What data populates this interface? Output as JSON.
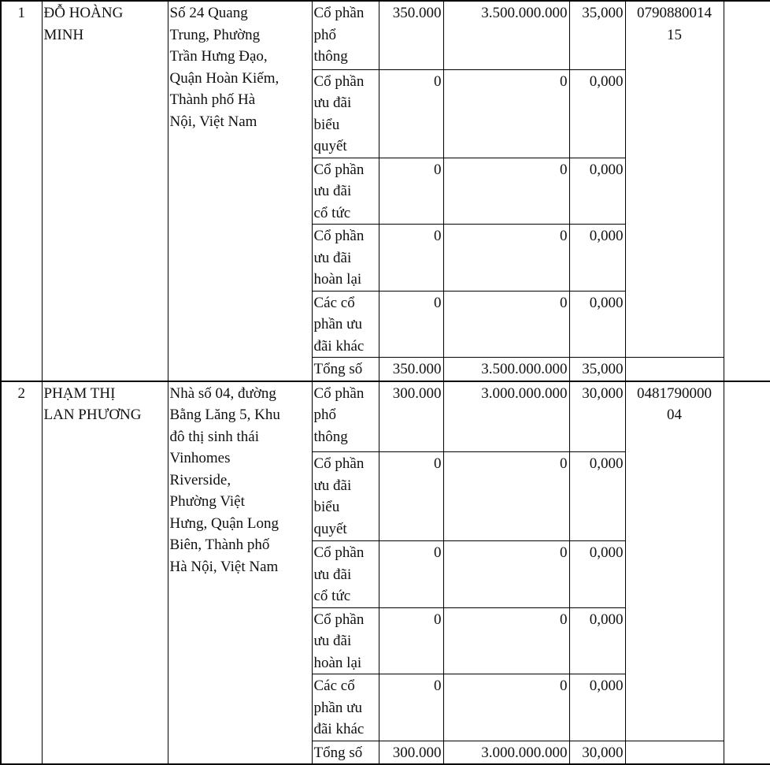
{
  "shareholders": [
    {
      "no": "1",
      "name": "ĐỖ HOÀNG\nMINH",
      "address": "Số 24 Quang\nTrung, Phường\nTrần Hưng Đạo,\nQuận Hoàn Kiếm,\nThành phố Hà\nNội, Việt Nam",
      "id_number": "0790880014\n15",
      "extra": "",
      "shares": [
        {
          "type": "Cổ phần\nphổ\nthông",
          "quantity": "350.000",
          "value": "3.500.000.000",
          "percent": "35,000"
        },
        {
          "type": "Cổ phần\nưu đãi\nbiểu\nquyết",
          "quantity": "0",
          "value": "0",
          "percent": "0,000"
        },
        {
          "type": "Cổ phần\nưu đãi\ncổ tức",
          "quantity": "0",
          "value": "0",
          "percent": "0,000"
        },
        {
          "type": "Cổ phần\nưu đãi\nhoàn lại",
          "quantity": "0",
          "value": "0",
          "percent": "0,000"
        },
        {
          "type": "Các cổ\nphần ưu\nđãi khác",
          "quantity": "0",
          "value": "0",
          "percent": "0,000"
        },
        {
          "type": "Tổng số",
          "quantity": "350.000",
          "value": "3.500.000.000",
          "percent": "35,000"
        }
      ]
    },
    {
      "no": "2",
      "name": "PHẠM THỊ\nLAN PHƯƠNG",
      "address": "Nhà số 04, đường\nBằng Lăng 5, Khu\nđô thị sinh thái\nVinhomes\nRiverside,\nPhường Việt\nHưng, Quận Long\nBiên, Thành phố\nHà Nội, Việt Nam",
      "id_number": "0481790000\n04",
      "extra": "",
      "shares": [
        {
          "type": "Cổ phần\nphổ\nthông",
          "quantity": "300.000",
          "value": "3.000.000.000",
          "percent": "30,000"
        },
        {
          "type": "Cổ phần\nưu đãi\nbiểu\nquyết",
          "quantity": "0",
          "value": "0",
          "percent": "0,000"
        },
        {
          "type": "Cổ phần\nưu đãi\ncổ tức",
          "quantity": "0",
          "value": "0",
          "percent": "0,000"
        },
        {
          "type": "Cổ phần\nưu đãi\nhoàn lại",
          "quantity": "0",
          "value": "0",
          "percent": "0,000"
        },
        {
          "type": "Các cổ\nphần ưu\nđãi khác",
          "quantity": "0",
          "value": "0",
          "percent": "0,000"
        },
        {
          "type": "Tổng số",
          "quantity": "300.000",
          "value": "3.000.000.000",
          "percent": "30,000"
        }
      ]
    }
  ]
}
